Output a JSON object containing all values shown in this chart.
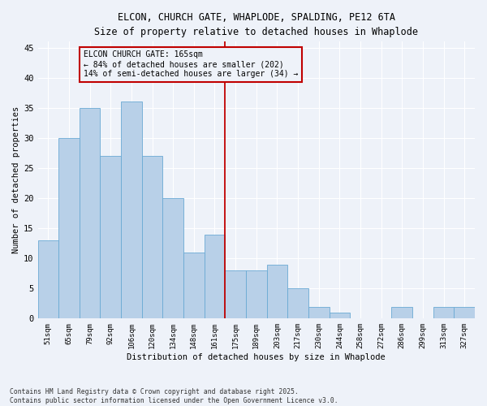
{
  "title_line1": "ELCON, CHURCH GATE, WHAPLODE, SPALDING, PE12 6TA",
  "title_line2": "Size of property relative to detached houses in Whaplode",
  "xlabel": "Distribution of detached houses by size in Whaplode",
  "ylabel": "Number of detached properties",
  "categories": [
    "51sqm",
    "65sqm",
    "79sqm",
    "92sqm",
    "106sqm",
    "120sqm",
    "134sqm",
    "148sqm",
    "161sqm",
    "175sqm",
    "189sqm",
    "203sqm",
    "217sqm",
    "230sqm",
    "244sqm",
    "258sqm",
    "272sqm",
    "286sqm",
    "299sqm",
    "313sqm",
    "327sqm"
  ],
  "values": [
    13,
    30,
    35,
    27,
    36,
    27,
    20,
    11,
    14,
    8,
    8,
    9,
    5,
    2,
    1,
    0,
    0,
    2,
    0,
    2,
    2
  ],
  "bar_color": "#b8d0e8",
  "bar_edge_color": "#6aaad4",
  "bar_width": 1.0,
  "vline_x_idx": 8,
  "vline_color": "#c00000",
  "annotation_text": "ELCON CHURCH GATE: 165sqm\n← 84% of detached houses are smaller (202)\n14% of semi-detached houses are larger (34) →",
  "annotation_box_color": "#c00000",
  "ylim": [
    0,
    46
  ],
  "yticks": [
    0,
    5,
    10,
    15,
    20,
    25,
    30,
    35,
    40,
    45
  ],
  "background_color": "#eef2f9",
  "grid_color": "#ffffff",
  "footer_line1": "Contains HM Land Registry data © Crown copyright and database right 2025.",
  "footer_line2": "Contains public sector information licensed under the Open Government Licence v3.0."
}
